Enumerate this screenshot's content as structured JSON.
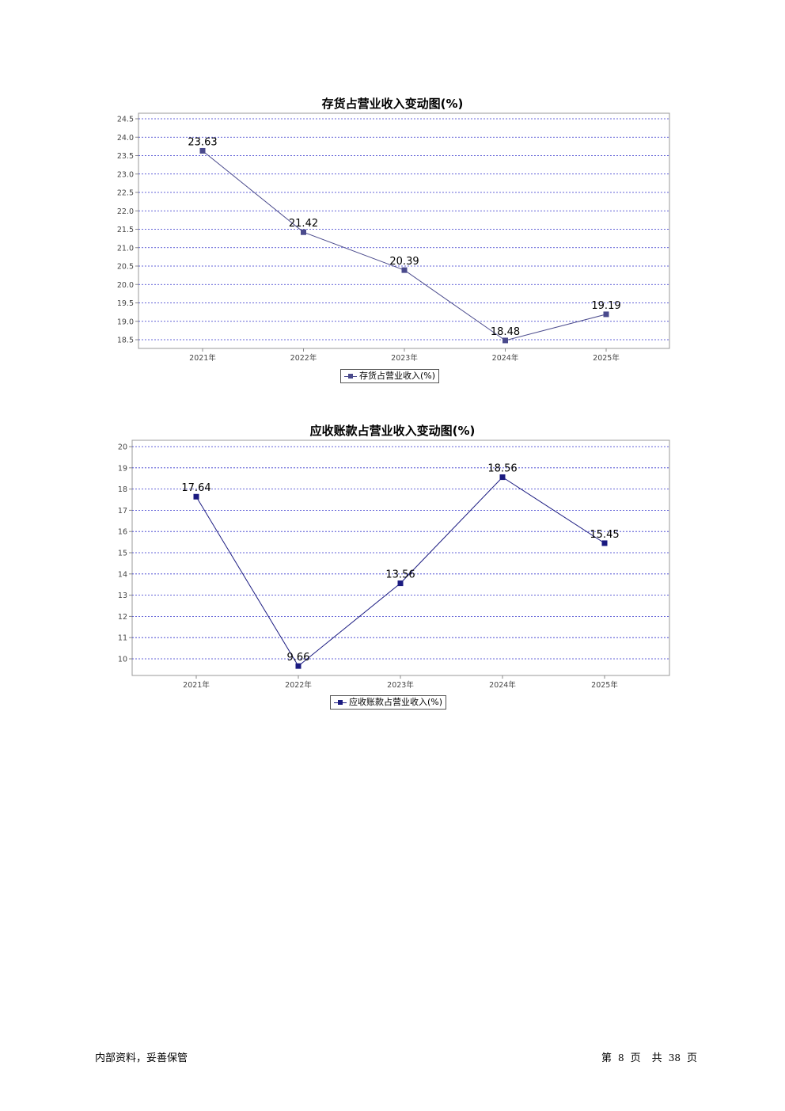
{
  "charts": [
    {
      "title": "存货占营业收入变动图(%)",
      "legend": "存货占营业收入(%)",
      "color": "#4a4a8c",
      "chart_data": {
        "type": "line",
        "categories": [
          "2021年",
          "2022年",
          "2023年",
          "2024年",
          "2025年"
        ],
        "series": [
          {
            "name": "存货占营业收入(%)",
            "values": [
              23.63,
              21.42,
              20.39,
              18.48,
              19.19
            ]
          }
        ],
        "data_labels": [
          "23.63",
          "21.42",
          "20.39",
          "18.48",
          "19.19"
        ],
        "y_ticks": [
          "24.5",
          "24.0",
          "23.5",
          "23.0",
          "22.5",
          "22.0",
          "21.5",
          "21.0",
          "20.5",
          "20.0",
          "19.5",
          "19.0",
          "18.5"
        ],
        "ylim": [
          18.5,
          24.5
        ],
        "grid": true,
        "legend_position": "bottom"
      }
    },
    {
      "title": "应收账款占营业收入变动图(%)",
      "legend": "应收账款占营业收入(%)",
      "color": "#1a1a80",
      "chart_data": {
        "type": "line",
        "categories": [
          "2021年",
          "2022年",
          "2023年",
          "2024年",
          "2025年"
        ],
        "series": [
          {
            "name": "应收账款占营业收入(%)",
            "values": [
              17.64,
              9.66,
              13.56,
              18.56,
              15.45
            ]
          }
        ],
        "data_labels": [
          "17.64",
          "9.66",
          "13.56",
          "18.56",
          "15.45"
        ],
        "y_ticks": [
          "20",
          "19",
          "18",
          "17",
          "16",
          "15",
          "14",
          "13",
          "12",
          "11",
          "10"
        ],
        "ylim": [
          10,
          20
        ],
        "grid": true,
        "legend_position": "bottom"
      }
    }
  ],
  "footer": {
    "left": "内部资料，妥善保管",
    "page_prefix": "第",
    "page_current": "8",
    "page_mid": "页",
    "total_prefix": "共",
    "page_total": "38",
    "total_suffix": "页"
  }
}
